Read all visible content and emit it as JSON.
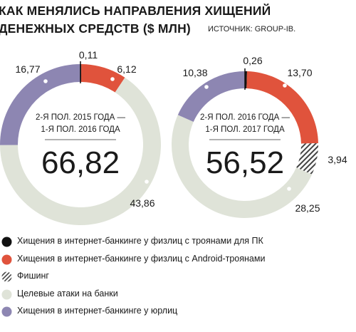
{
  "title": {
    "line1": "КАК МЕНЯЛИСЬ НАПРАВЛЕНИЯ ХИЩЕНИЙ",
    "line2": "ДЕНЕЖНЫХ СРЕДСТВ ($ МЛН)",
    "source": "ИСТОЧНИК: GROUP-IB."
  },
  "colors": {
    "pc_trojans": "#111111",
    "android_trojans": "#e0533c",
    "phishing": "#444444",
    "targeted_attacks": "#dfe3d8",
    "corporate_banking": "#8d86b2"
  },
  "chart_data": {
    "type": "pie",
    "categories": [
      "Хищения в интернет-банкинге у физлиц с троянами для ПК",
      "Хищения в интернет-банкинге у физлиц с Android-троянами",
      "Фишинг",
      "Целевые атаки на банки",
      "Хищения в интернет-банкинге у юрлиц"
    ],
    "charts": [
      {
        "period_line1": "2-Я ПОЛ. 2015 ГОДА —",
        "period_line2": "1-Я ПОЛ. 2016 ГОДА",
        "total": "66,82",
        "values": [
          0.11,
          6.12,
          0,
          43.86,
          16.77
        ],
        "value_labels": [
          "0,11",
          "6,12",
          "",
          "43,86",
          "16,77"
        ]
      },
      {
        "period_line1": "2-Я ПОЛ. 2016 ГОДА —",
        "period_line2": "1-Я ПОЛ. 2017 ГОДА",
        "total": "56,52",
        "values": [
          0.26,
          13.7,
          3.94,
          28.25,
          10.38
        ],
        "value_labels": [
          "0,26",
          "13,70",
          "3,94",
          "28,25",
          "10,38"
        ]
      }
    ]
  },
  "legend": [
    {
      "label": "Хищения в интернет-банкинге у физлиц с троянами для ПК",
      "key": "pc_trojans",
      "swatch": "circle"
    },
    {
      "label": "Хищения в интернет-банкинге у физлиц с Android-троянами",
      "key": "android_trojans",
      "swatch": "circle"
    },
    {
      "label": "Фишинг",
      "key": "phishing",
      "swatch": "hatched-circle"
    },
    {
      "label": "Целевые атаки на банки",
      "key": "targeted_attacks",
      "swatch": "circle"
    },
    {
      "label": "Хищения в интернет-банкинге у юрлиц",
      "key": "corporate_banking",
      "swatch": "circle"
    }
  ]
}
